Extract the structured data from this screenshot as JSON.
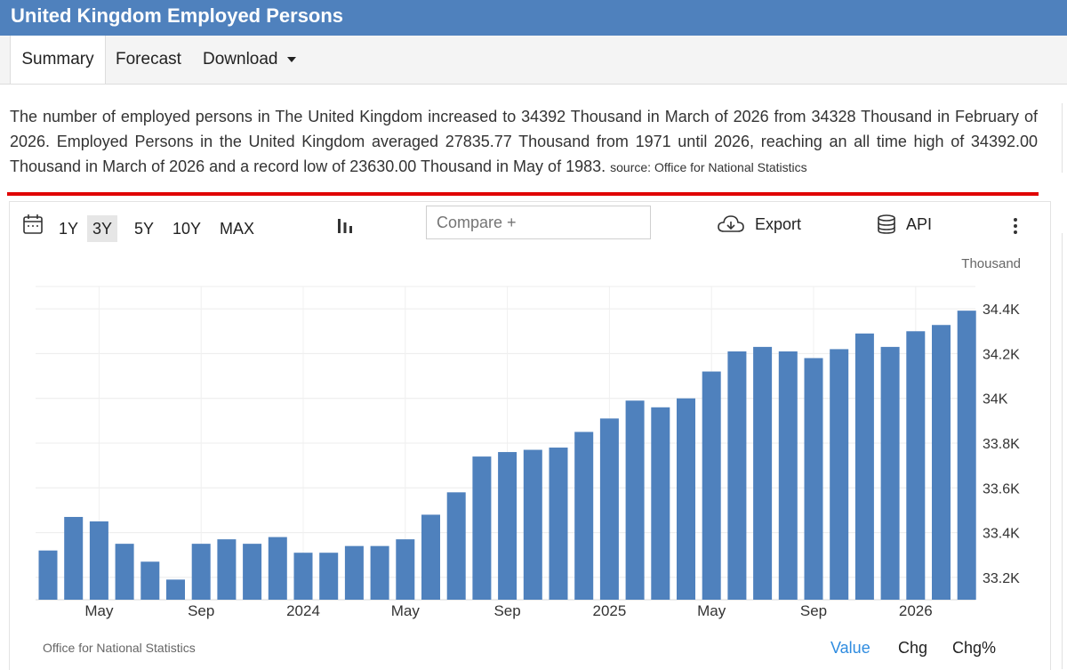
{
  "header": {
    "title": "United Kingdom Employed Persons"
  },
  "tabs": {
    "summary": "Summary",
    "forecast": "Forecast",
    "download": "Download"
  },
  "description": {
    "text": "The number of employed persons in The United Kingdom increased to 34392 Thousand in March of 2026 from 34328 Thousand in February of 2026. Employed Persons in the United Kingdom averaged 27835.77 Thousand from 1971 until 2026, reaching an all time high of 34392.00 Thousand in March of 2026 and a record low of 23630.00 Thousand in May of 1983.",
    "source": "source: Office for National Statistics"
  },
  "toolbar": {
    "ranges": [
      "1Y",
      "3Y",
      "5Y",
      "10Y",
      "MAX"
    ],
    "active_range": "3Y",
    "compare_placeholder": "Compare +",
    "export_label": "Export",
    "api_label": "API",
    "icons": [
      "calendar-icon",
      "bar-chart-icon",
      "cloud-download-icon",
      "database-icon",
      "kebab-menu-icon"
    ]
  },
  "footer": {
    "source_label": "Office for National Statistics",
    "value_tab": "Value",
    "chg_tab": "Chg",
    "chgpct_tab": "Chg%",
    "active_tab": "Value"
  },
  "colors": {
    "title_bar": "#4f81bd",
    "bar": "#4f81bd",
    "accent_line": "#e00000",
    "active_tab_text": "#2f8ce0"
  },
  "chart_data": {
    "type": "bar",
    "unit_label": "Thousand",
    "ylim": [
      33100,
      34500
    ],
    "y_ticks": [
      33200,
      33400,
      33600,
      33800,
      34000,
      34200,
      34400
    ],
    "y_tick_labels": [
      "33.2K",
      "33.4K",
      "33.6K",
      "33.8K",
      "34K",
      "34.2K",
      "34.4K"
    ],
    "x_tick_labels": [
      {
        "label": "May",
        "index": 2
      },
      {
        "label": "Sep",
        "index": 6
      },
      {
        "label": "2024",
        "index": 10
      },
      {
        "label": "May",
        "index": 14
      },
      {
        "label": "Sep",
        "index": 18
      },
      {
        "label": "2025",
        "index": 22
      },
      {
        "label": "May",
        "index": 26
      },
      {
        "label": "Sep",
        "index": 30
      },
      {
        "label": "2026",
        "index": 34
      }
    ],
    "values": [
      33320,
      33470,
      33450,
      33350,
      33270,
      33190,
      33350,
      33370,
      33350,
      33380,
      33310,
      33310,
      33340,
      33340,
      33370,
      33480,
      33580,
      33740,
      33760,
      33770,
      33780,
      33850,
      33910,
      33990,
      33960,
      34000,
      34120,
      34210,
      34230,
      34210,
      34180,
      34220,
      34290,
      34230,
      34300,
      34328,
      34392
    ],
    "grid": true
  }
}
